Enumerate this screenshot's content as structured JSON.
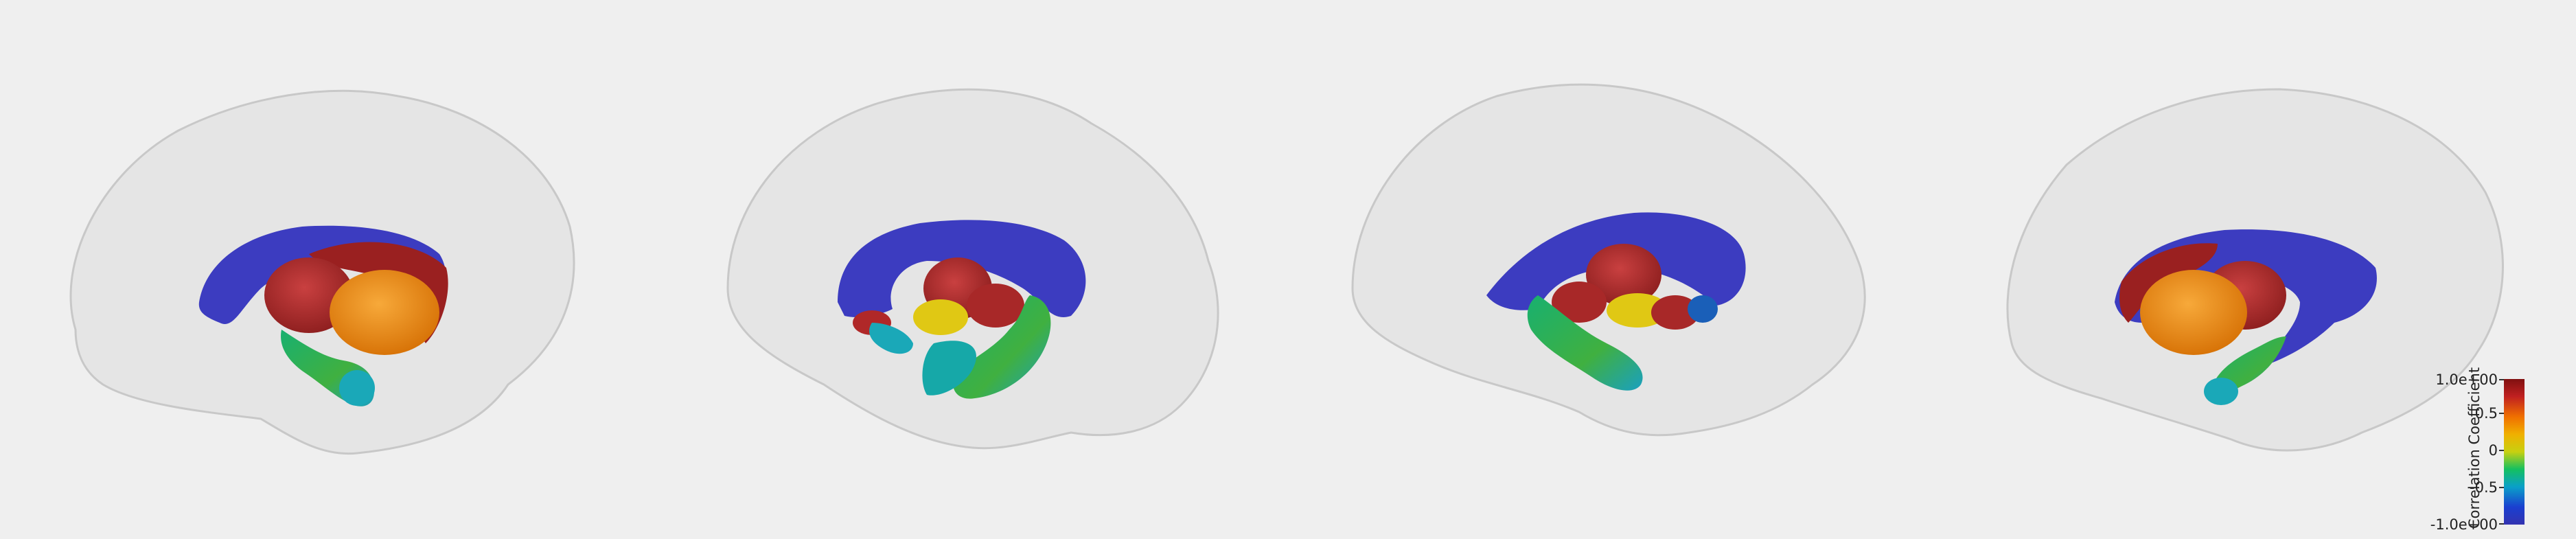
{
  "viewer": {
    "background": "#efefef",
    "views": [
      {
        "name": "left-lateral"
      },
      {
        "name": "left-medial"
      },
      {
        "name": "right-medial"
      },
      {
        "name": "right-lateral"
      }
    ]
  },
  "colorbar": {
    "title": "Correlation Coefficient",
    "ticks": [
      "1.0e+00",
      "0.5",
      "0",
      "-0.5",
      "-1.0e+00"
    ],
    "range": [
      -1.0,
      1.0
    ],
    "colormap": [
      "#3333b0",
      "#1a3fd0",
      "#0aa0c8",
      "#14c060",
      "#c8d010",
      "#f0b000",
      "#f07000",
      "#c02020",
      "#801010"
    ]
  },
  "colors": {
    "ventricle": "#3c3cc0",
    "caudate_red": "#b02828",
    "thalamus_orange": "#e88a10",
    "pallidum_yellow": "#e8d010",
    "hippocampus_green": "#2aa060",
    "amygdala_cyan": "#1aa8b8",
    "cortex_glass": "#d8d8d8"
  }
}
